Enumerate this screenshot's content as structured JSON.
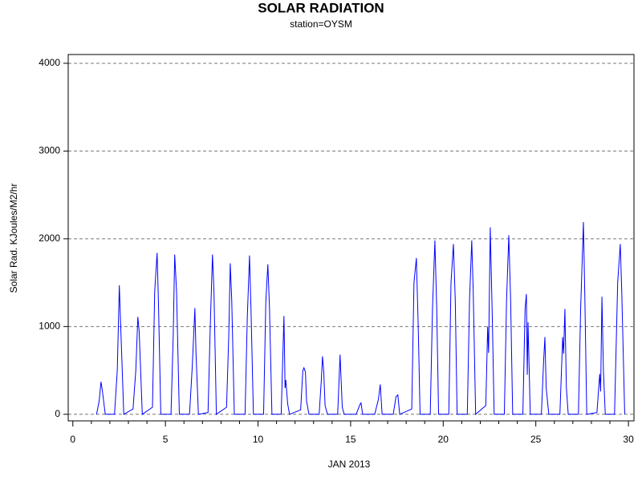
{
  "chart_data": {
    "type": "line",
    "title": "SOLAR RADIATION",
    "subtitle": "station=OYSM",
    "x_label": "JAN 2013",
    "y_label": "Solar Rad. KJoules/M2/hr",
    "xlim": [
      -0.25,
      30.3
    ],
    "ylim": [
      -75,
      4100
    ],
    "xticks": [
      0,
      5,
      10,
      15,
      20,
      25,
      30
    ],
    "x_minor_ticks": [
      1,
      2,
      3,
      4,
      6,
      7,
      8,
      9,
      11,
      12,
      13,
      14,
      16,
      17,
      18,
      19,
      21,
      22,
      23,
      24,
      26,
      27,
      28,
      29
    ],
    "yticks": [
      0,
      1000,
      2000,
      3000,
      4000
    ],
    "grid": true,
    "x": [
      1.28,
      1.42,
      1.52,
      1.6,
      1.75,
      2.25,
      2.4,
      2.51,
      2.56,
      2.75,
      3.25,
      3.4,
      3.51,
      3.58,
      3.75,
      4.3,
      4.42,
      4.55,
      4.62,
      4.75,
      5.3,
      5.42,
      5.5,
      5.6,
      5.75,
      6.3,
      6.45,
      6.59,
      6.65,
      6.78,
      7.3,
      7.42,
      7.54,
      7.62,
      7.75,
      8.3,
      8.42,
      8.5,
      8.58,
      8.72,
      9.3,
      9.42,
      9.54,
      9.62,
      9.75,
      10.3,
      10.42,
      10.53,
      10.62,
      10.75,
      11.25,
      11.4,
      11.46,
      11.5,
      11.6,
      11.7,
      12.3,
      12.42,
      12.48,
      12.56,
      12.62,
      12.75,
      13.3,
      13.42,
      13.48,
      13.55,
      13.62,
      13.75,
      14.3,
      14.43,
      14.48,
      14.55,
      14.65,
      15.3,
      15.5,
      15.56,
      15.65,
      16.3,
      16.5,
      16.6,
      16.7,
      17.3,
      17.45,
      17.55,
      17.65,
      18.3,
      18.42,
      18.55,
      18.65,
      18.75,
      19.3,
      19.42,
      19.55,
      19.65,
      19.75,
      20.3,
      20.42,
      20.55,
      20.65,
      20.75,
      21.3,
      21.42,
      21.54,
      21.62,
      21.75,
      22.3,
      22.4,
      22.45,
      22.54,
      22.65,
      22.75,
      23.3,
      23.42,
      23.54,
      23.64,
      23.75,
      24.3,
      24.42,
      24.49,
      24.54,
      24.58,
      24.7,
      25.3,
      25.42,
      25.49,
      25.56,
      25.7,
      26.3,
      26.45,
      26.5,
      26.57,
      26.65,
      26.75,
      27.3,
      27.42,
      27.57,
      27.65,
      27.75,
      28.3,
      28.45,
      28.5,
      28.57,
      28.65,
      28.75,
      29.25,
      29.42,
      29.56,
      29.64,
      29.8
    ],
    "series": [
      {
        "name": "Solar Rad.",
        "color": "#0000ff",
        "values": [
          0,
          150,
          370,
          260,
          0,
          0,
          500,
          1470,
          1150,
          0,
          60,
          500,
          1110,
          950,
          0,
          80,
          1400,
          1840,
          1300,
          0,
          0,
          900,
          1820,
          1400,
          0,
          0,
          550,
          1210,
          700,
          0,
          20,
          1000,
          1820,
          1400,
          0,
          80,
          900,
          1720,
          1300,
          0,
          0,
          1100,
          1810,
          1200,
          0,
          0,
          1280,
          1710,
          1200,
          0,
          0,
          1120,
          300,
          390,
          120,
          0,
          50,
          500,
          530,
          480,
          150,
          0,
          0,
          400,
          660,
          480,
          100,
          0,
          0,
          680,
          420,
          80,
          0,
          0,
          110,
          130,
          0,
          0,
          170,
          340,
          0,
          0,
          200,
          220,
          0,
          60,
          1500,
          1780,
          1000,
          0,
          0,
          1200,
          1980,
          1200,
          0,
          0,
          1500,
          1940,
          1300,
          0,
          0,
          1300,
          1980,
          1400,
          0,
          100,
          1000,
          700,
          2130,
          1100,
          0,
          0,
          1300,
          2040,
          1300,
          0,
          0,
          1200,
          1370,
          450,
          1050,
          0,
          0,
          600,
          880,
          300,
          0,
          0,
          880,
          690,
          1200,
          300,
          0,
          0,
          1200,
          2190,
          1300,
          0,
          20,
          460,
          260,
          1340,
          500,
          0,
          0,
          1500,
          1940,
          1400,
          0
        ]
      }
    ]
  }
}
